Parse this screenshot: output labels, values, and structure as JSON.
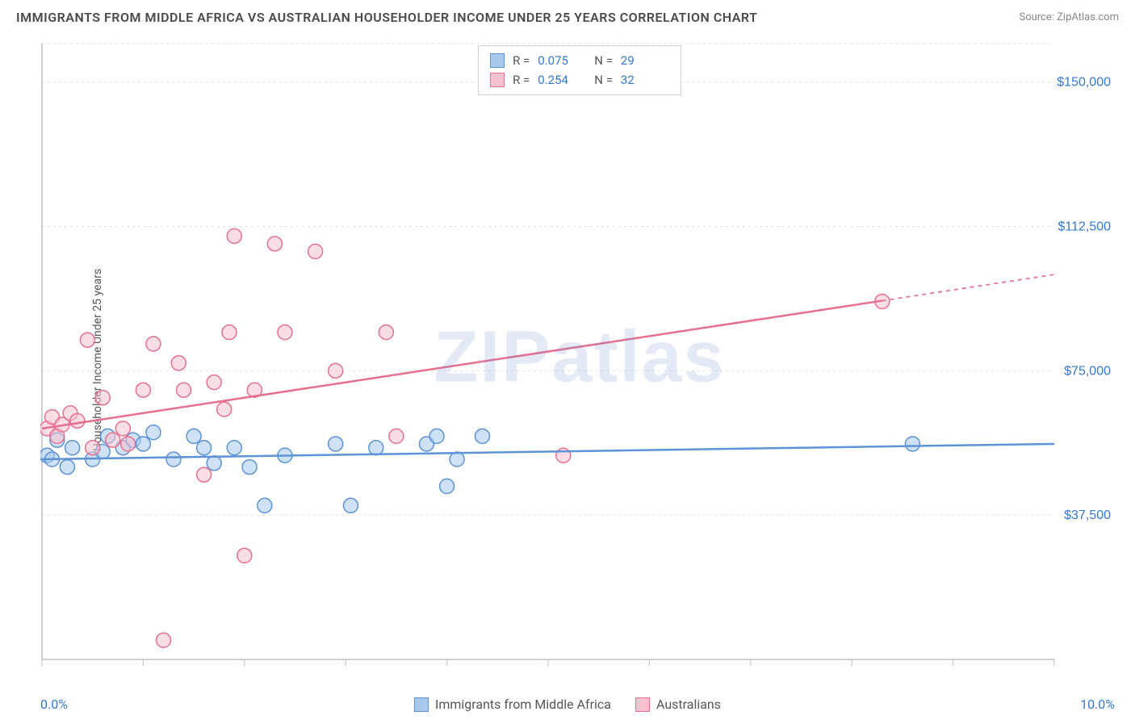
{
  "title": "IMMIGRANTS FROM MIDDLE AFRICA VS AUSTRALIAN HOUSEHOLDER INCOME UNDER 25 YEARS CORRELATION CHART",
  "source": "Source: ZipAtlas.com",
  "watermark": "ZIPatlas",
  "y_axis_label": "Householder Income Under 25 years",
  "chart": {
    "type": "scatter",
    "background_color": "#ffffff",
    "grid_color": "#e0e0e0",
    "axis_color": "#bfbfbf",
    "xlim": [
      0,
      10
    ],
    "ylim": [
      0,
      160000
    ],
    "x_ticks": [
      0,
      1,
      2,
      3,
      4,
      5,
      6,
      7,
      8,
      9,
      10
    ],
    "x_tick_labels_shown": {
      "0": "0.0%",
      "10": "10.0%"
    },
    "y_ticks": [
      37500,
      75000,
      112500,
      150000
    ],
    "y_tick_labels": [
      "$37,500",
      "$75,000",
      "$112,500",
      "$150,000"
    ],
    "y_tick_color": "#3478d6",
    "y_tick_fontsize": 16,
    "marker_radius": 9,
    "marker_opacity": 0.55,
    "line_width": 2.5,
    "series": [
      {
        "name": "Immigrants from Middle Africa",
        "color_fill": "#a8c9ec",
        "color_stroke": "#5b93d6",
        "R": "0.075",
        "N": "29",
        "trend": {
          "y_at_xmin": 52000,
          "y_at_xmax": 56000,
          "solid_until_x": 10
        },
        "points": [
          [
            0.05,
            53000
          ],
          [
            0.1,
            52000
          ],
          [
            0.15,
            57000
          ],
          [
            0.25,
            50000
          ],
          [
            0.3,
            55000
          ],
          [
            0.5,
            52000
          ],
          [
            0.6,
            54000
          ],
          [
            0.65,
            58000
          ],
          [
            0.8,
            55000
          ],
          [
            0.9,
            57000
          ],
          [
            1.0,
            56000
          ],
          [
            1.1,
            59000
          ],
          [
            1.3,
            52000
          ],
          [
            1.5,
            58000
          ],
          [
            1.6,
            55000
          ],
          [
            1.7,
            51000
          ],
          [
            1.9,
            55000
          ],
          [
            2.05,
            50000
          ],
          [
            2.2,
            40000
          ],
          [
            2.4,
            53000
          ],
          [
            2.9,
            56000
          ],
          [
            3.05,
            40000
          ],
          [
            3.3,
            55000
          ],
          [
            3.8,
            56000
          ],
          [
            3.9,
            58000
          ],
          [
            4.0,
            45000
          ],
          [
            4.1,
            52000
          ],
          [
            4.35,
            58000
          ],
          [
            8.6,
            56000
          ]
        ]
      },
      {
        "name": "Australians",
        "color_fill": "#f5c3cf",
        "color_stroke": "#e76f8f",
        "R": "0.254",
        "N": "32",
        "trend": {
          "y_at_xmin": 60000,
          "y_at_xmax": 100000,
          "solid_until_x": 8.3
        },
        "points": [
          [
            0.05,
            60000
          ],
          [
            0.1,
            63000
          ],
          [
            0.15,
            58000
          ],
          [
            0.2,
            61000
          ],
          [
            0.28,
            64000
          ],
          [
            0.35,
            62000
          ],
          [
            0.45,
            83000
          ],
          [
            0.5,
            55000
          ],
          [
            0.6,
            68000
          ],
          [
            0.7,
            57000
          ],
          [
            0.8,
            60000
          ],
          [
            0.85,
            56000
          ],
          [
            1.0,
            70000
          ],
          [
            1.1,
            82000
          ],
          [
            1.2,
            5000
          ],
          [
            1.35,
            77000
          ],
          [
            1.4,
            70000
          ],
          [
            1.6,
            48000
          ],
          [
            1.7,
            72000
          ],
          [
            1.8,
            65000
          ],
          [
            1.85,
            85000
          ],
          [
            1.9,
            110000
          ],
          [
            2.0,
            27000
          ],
          [
            2.1,
            70000
          ],
          [
            2.3,
            108000
          ],
          [
            2.4,
            85000
          ],
          [
            2.7,
            106000
          ],
          [
            2.9,
            75000
          ],
          [
            3.4,
            85000
          ],
          [
            3.5,
            58000
          ],
          [
            5.15,
            53000
          ],
          [
            8.3,
            93000
          ]
        ]
      }
    ]
  },
  "legend_bottom": [
    {
      "label": "Immigrants from Middle Africa",
      "fill": "#a8c9ec",
      "stroke": "#5b93d6"
    },
    {
      "label": "Australians",
      "fill": "#f5c3cf",
      "stroke": "#e76f8f"
    }
  ]
}
